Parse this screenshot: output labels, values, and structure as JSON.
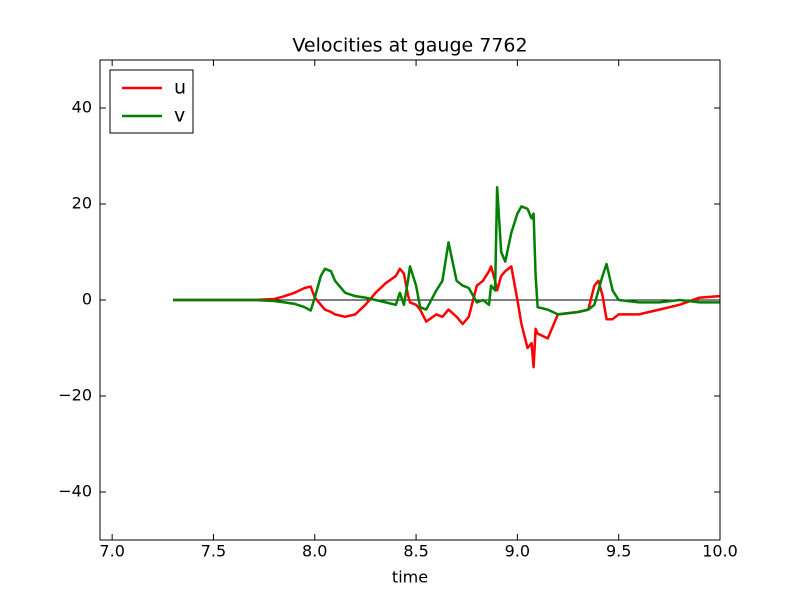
{
  "chart_data": {
    "type": "line",
    "title": "Velocities at gauge 7762",
    "x_label": "time",
    "x": [
      7.3,
      7.5,
      7.7,
      7.8,
      7.85,
      7.9,
      7.95,
      7.98,
      8.0,
      8.03,
      8.05,
      8.08,
      8.1,
      8.15,
      8.2,
      8.25,
      8.3,
      8.35,
      8.4,
      8.42,
      8.44,
      8.46,
      8.47,
      8.5,
      8.52,
      8.55,
      8.6,
      8.63,
      8.66,
      8.7,
      8.73,
      8.76,
      8.8,
      8.83,
      8.86,
      8.87,
      8.89,
      8.9,
      8.92,
      8.94,
      8.97,
      9.0,
      9.02,
      9.05,
      9.07,
      9.08,
      9.09,
      9.1,
      9.15,
      9.2,
      9.3,
      9.35,
      9.38,
      9.4,
      9.42,
      9.44,
      9.47,
      9.5,
      9.6,
      9.7,
      9.8,
      9.9,
      10.0
    ],
    "series": [
      {
        "name": "u",
        "color": "#ff0000",
        "values": [
          0,
          0,
          0,
          0.2,
          0.8,
          1.5,
          2.5,
          2.8,
          0.5,
          -1,
          -2,
          -2.5,
          -3,
          -3.5,
          -3,
          -1,
          1.5,
          3.5,
          5,
          6.5,
          5.5,
          1,
          -0.5,
          -1,
          -2,
          -4.5,
          -3,
          -3.5,
          -2,
          -3.5,
          -5,
          -3.5,
          3,
          4,
          6,
          7,
          4,
          2,
          5,
          6,
          7,
          0,
          -5,
          -10,
          -9,
          -14,
          -6,
          -7,
          -8,
          -3,
          -2.5,
          -2,
          3,
          4,
          1,
          -4,
          -4,
          -3,
          -3,
          -2,
          -1,
          0.5,
          0.8
        ]
      },
      {
        "name": "v",
        "color": "#008000",
        "values": [
          0,
          0,
          0,
          -0.2,
          -0.5,
          -0.8,
          -1.5,
          -2.2,
          0.5,
          5,
          6.5,
          6,
          4,
          1.5,
          0.8,
          0.5,
          0,
          -0.5,
          -1,
          1.5,
          -1,
          4,
          7,
          3,
          -1.5,
          -2,
          2,
          4,
          12,
          4,
          3,
          2.5,
          -0.5,
          0,
          -1,
          3,
          2,
          23.5,
          10,
          8,
          14,
          18,
          19.5,
          19,
          17,
          18,
          5,
          -1.5,
          -2,
          -3,
          -2.5,
          -2,
          -1,
          2,
          5,
          7.5,
          2,
          0,
          -0.5,
          -0.5,
          0,
          -0.5,
          -0.5
        ]
      }
    ],
    "xlim": [
      6.94,
      10.0
    ],
    "ylim": [
      -50,
      50
    ],
    "xticks": [
      {
        "value": 7,
        "label": "7.0"
      },
      7.5,
      {
        "value": 8,
        "label": "8.0"
      },
      8.5,
      {
        "value": 9,
        "label": "9.0"
      },
      9.5,
      {
        "value": 10,
        "label": "10.0"
      }
    ],
    "yticks": [
      {
        "value": -40,
        "label": "−40"
      },
      {
        "value": -20,
        "label": "−20"
      },
      0,
      20,
      40
    ],
    "legend": "upper left"
  }
}
